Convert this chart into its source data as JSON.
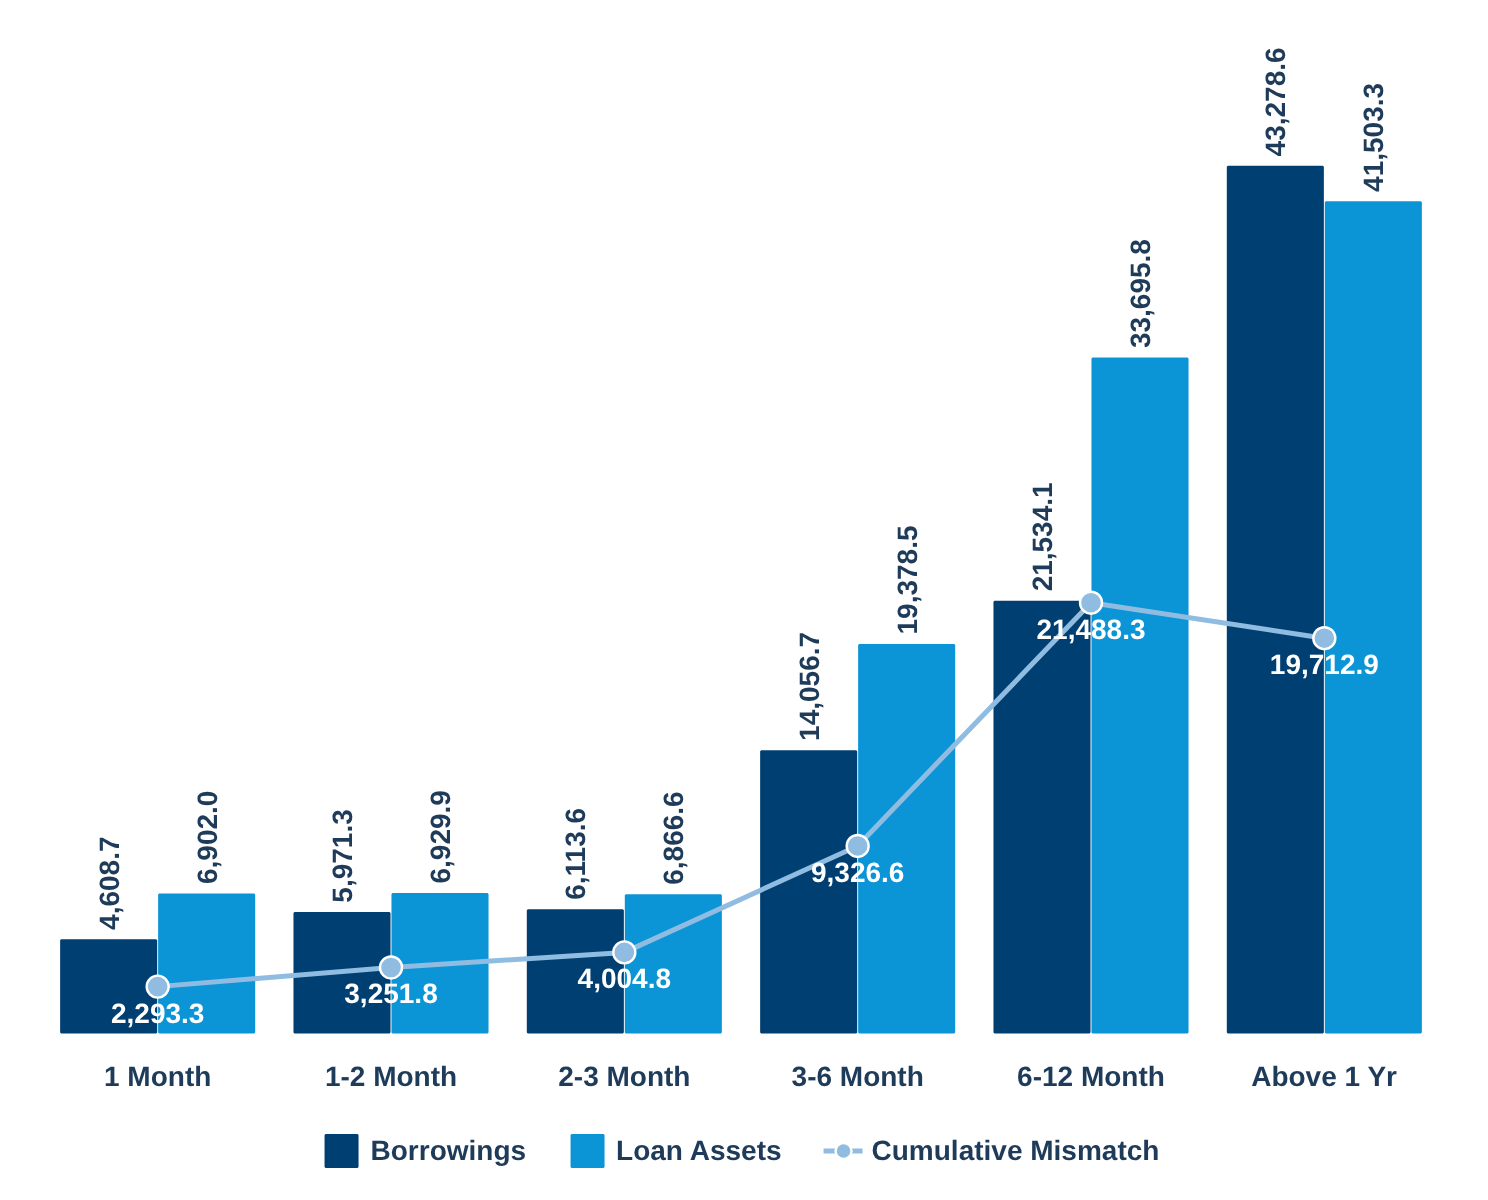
{
  "chart_data": {
    "type": "bar",
    "categories": [
      "1 Month",
      "1-2 Month",
      "2-3 Month",
      "3-6 Month",
      "6-12 Month",
      "Above 1 Yr"
    ],
    "series": [
      {
        "name": "Borrowings",
        "color": "#003f72",
        "values": [
          4608.7,
          5971.3,
          6113.6,
          14056.7,
          21534.1,
          43278.6
        ],
        "value_labels": [
          "4,608.7",
          "5,971.3",
          "6,113.6",
          "14,056.7",
          "21,534.1",
          "43,278.6"
        ]
      },
      {
        "name": "Loan Assets",
        "color": "#0b94d6",
        "values": [
          6902.0,
          6929.9,
          6866.6,
          19378.5,
          33695.8,
          41503.3
        ],
        "value_labels": [
          "6,902.0",
          "6,929.9",
          "6,866.6",
          "19,378.5",
          "33,695.8",
          "41,503.3"
        ]
      },
      {
        "name": "Cumulative Mismatch",
        "type": "line",
        "color": "#8fbce0",
        "values": [
          2293.3,
          3251.8,
          4004.8,
          9326.6,
          21488.3,
          19712.9
        ],
        "value_labels": [
          "2,293.3",
          "3,251.8",
          "4,004.8",
          "9,326.6",
          "21,488.3",
          "19,712.9"
        ]
      }
    ],
    "legend": "bottom",
    "marker": "circle",
    "line_style": "solid",
    "grid": false
  }
}
